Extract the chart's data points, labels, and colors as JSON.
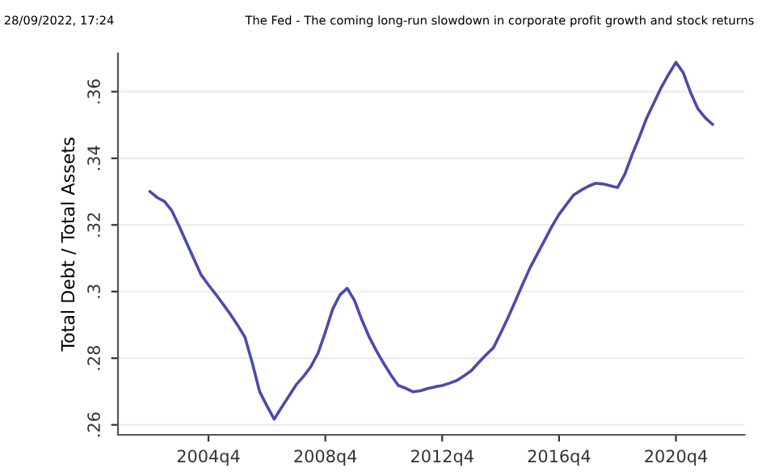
{
  "chart_data": {
    "type": "line",
    "title": "The Fed - The coming long-run slowdown in corporate profit growth and stock returns",
    "ylabel": "Total Debt / Total Assets",
    "annotations": [
      "28/09/2022, 17:24"
    ],
    "categories": [
      null,
      null,
      null,
      null,
      null,
      null,
      null,
      null,
      "2004q4",
      null,
      null,
      null,
      null,
      null,
      null,
      null,
      null,
      null,
      null,
      null,
      null,
      null,
      null,
      null,
      "2008q4",
      null,
      null,
      null,
      null,
      null,
      null,
      null,
      null,
      null,
      null,
      null,
      null,
      null,
      null,
      null,
      "2012q4",
      null,
      null,
      null,
      null,
      null,
      null,
      null,
      null,
      null,
      null,
      null,
      null,
      null,
      null,
      null,
      "2016q4",
      null,
      null,
      null,
      null,
      null,
      null,
      null,
      null,
      null,
      null,
      null,
      null,
      null,
      null,
      null,
      "2020q4",
      null,
      null,
      null,
      null,
      null
    ],
    "series": [
      {
        "color": "#4b4bab",
        "values": [
          0.33,
          0.3282,
          0.327,
          0.3242,
          0.3196,
          0.3147,
          0.3098,
          0.305,
          0.302,
          0.2992,
          0.2962,
          0.2932,
          0.2899,
          0.2863,
          0.2786,
          0.27,
          0.2657,
          0.2617,
          0.2652,
          0.2686,
          0.272,
          0.2745,
          0.2774,
          0.2815,
          0.2878,
          0.2947,
          0.299,
          0.301,
          0.2973,
          0.2915,
          0.2864,
          0.2822,
          0.2784,
          0.2749,
          0.2718,
          0.271,
          0.2699,
          0.2702,
          0.2709,
          0.2714,
          0.2718,
          0.2725,
          0.2733,
          0.2747,
          0.2763,
          0.2787,
          0.281,
          0.2831,
          0.2875,
          0.2921,
          0.2971,
          0.3021,
          0.307,
          0.3112,
          0.3153,
          0.3195,
          0.3232,
          0.3261,
          0.329,
          0.3304,
          0.3316,
          0.3325,
          0.3323,
          0.3318,
          0.3312,
          0.3352,
          0.3411,
          0.3464,
          0.3521,
          0.3567,
          0.3613,
          0.3652,
          0.3688,
          0.3657,
          0.3598,
          0.3549,
          0.3522,
          0.3502
        ]
      }
    ],
    "ylim": [
      0.257,
      0.3715
    ],
    "yticks": [
      {
        "value": 0.26,
        "label": ".26"
      },
      {
        "value": 0.28,
        "label": ".28"
      },
      {
        "value": 0.3,
        "label": ".3"
      },
      {
        "value": 0.32,
        "label": ".32"
      },
      {
        "value": 0.34,
        "label": ".34"
      },
      {
        "value": 0.36,
        "label": ".36"
      }
    ],
    "grid": "y",
    "legend": false,
    "marker": "none",
    "line_style": "solid"
  }
}
